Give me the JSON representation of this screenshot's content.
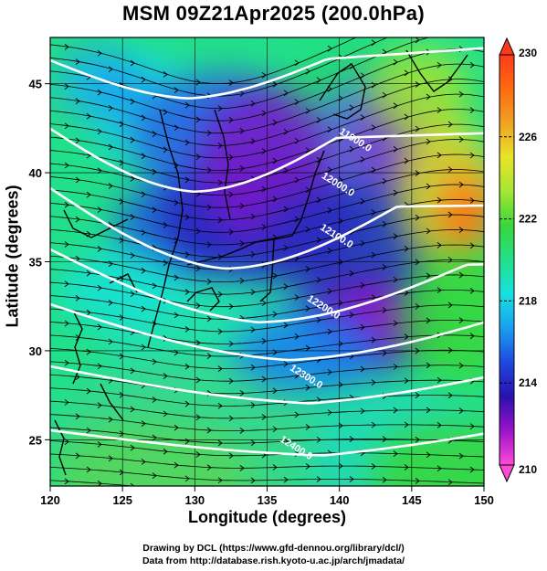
{
  "title": "MSM 09Z21Apr2025 (200.0hPa)",
  "xlabel": "Longitude (degrees)",
  "ylabel": "Latitude  (degrees)",
  "credits": [
    "Drawing by DCL (https://www.gfd-dennou.org/library/dcl/)",
    "Data from http://database.rish.kyoto-u.ac.jp/arch/jmadata/"
  ],
  "map": {
    "lon_range": [
      120,
      150
    ],
    "lat_range": [
      22.4,
      47.6
    ],
    "x_ticks": [
      120,
      125,
      130,
      135,
      140,
      145,
      150
    ],
    "y_ticks": [
      25,
      30,
      35,
      40,
      45
    ],
    "field": "temperature",
    "colorbar": {
      "min": 210,
      "max": 230,
      "ticks": [
        210,
        214,
        218,
        222,
        226,
        230
      ],
      "colors": [
        "#ff4ad8",
        "#9b14c8",
        "#2a10b0",
        "#1e48e0",
        "#1a9ff0",
        "#18e0e0",
        "#22e08a",
        "#3ad63a",
        "#a4e634",
        "#e8e428",
        "#f0a224",
        "#ff6a10",
        "#ff3a1a"
      ]
    },
    "contours": [
      {
        "label": "11900.0",
        "lon": 141.0,
        "lat": 41.7
      },
      {
        "label": "12000.0",
        "lon": 139.8,
        "lat": 39.2
      },
      {
        "label": "12100.0",
        "lon": 139.7,
        "lat": 36.3
      },
      {
        "label": "12200.0",
        "lon": 138.8,
        "lat": 32.3
      },
      {
        "label": "12300.0",
        "lon": 137.6,
        "lat": 28.4
      },
      {
        "label": "12400.0",
        "lon": 136.9,
        "lat": 24.4
      }
    ]
  }
}
